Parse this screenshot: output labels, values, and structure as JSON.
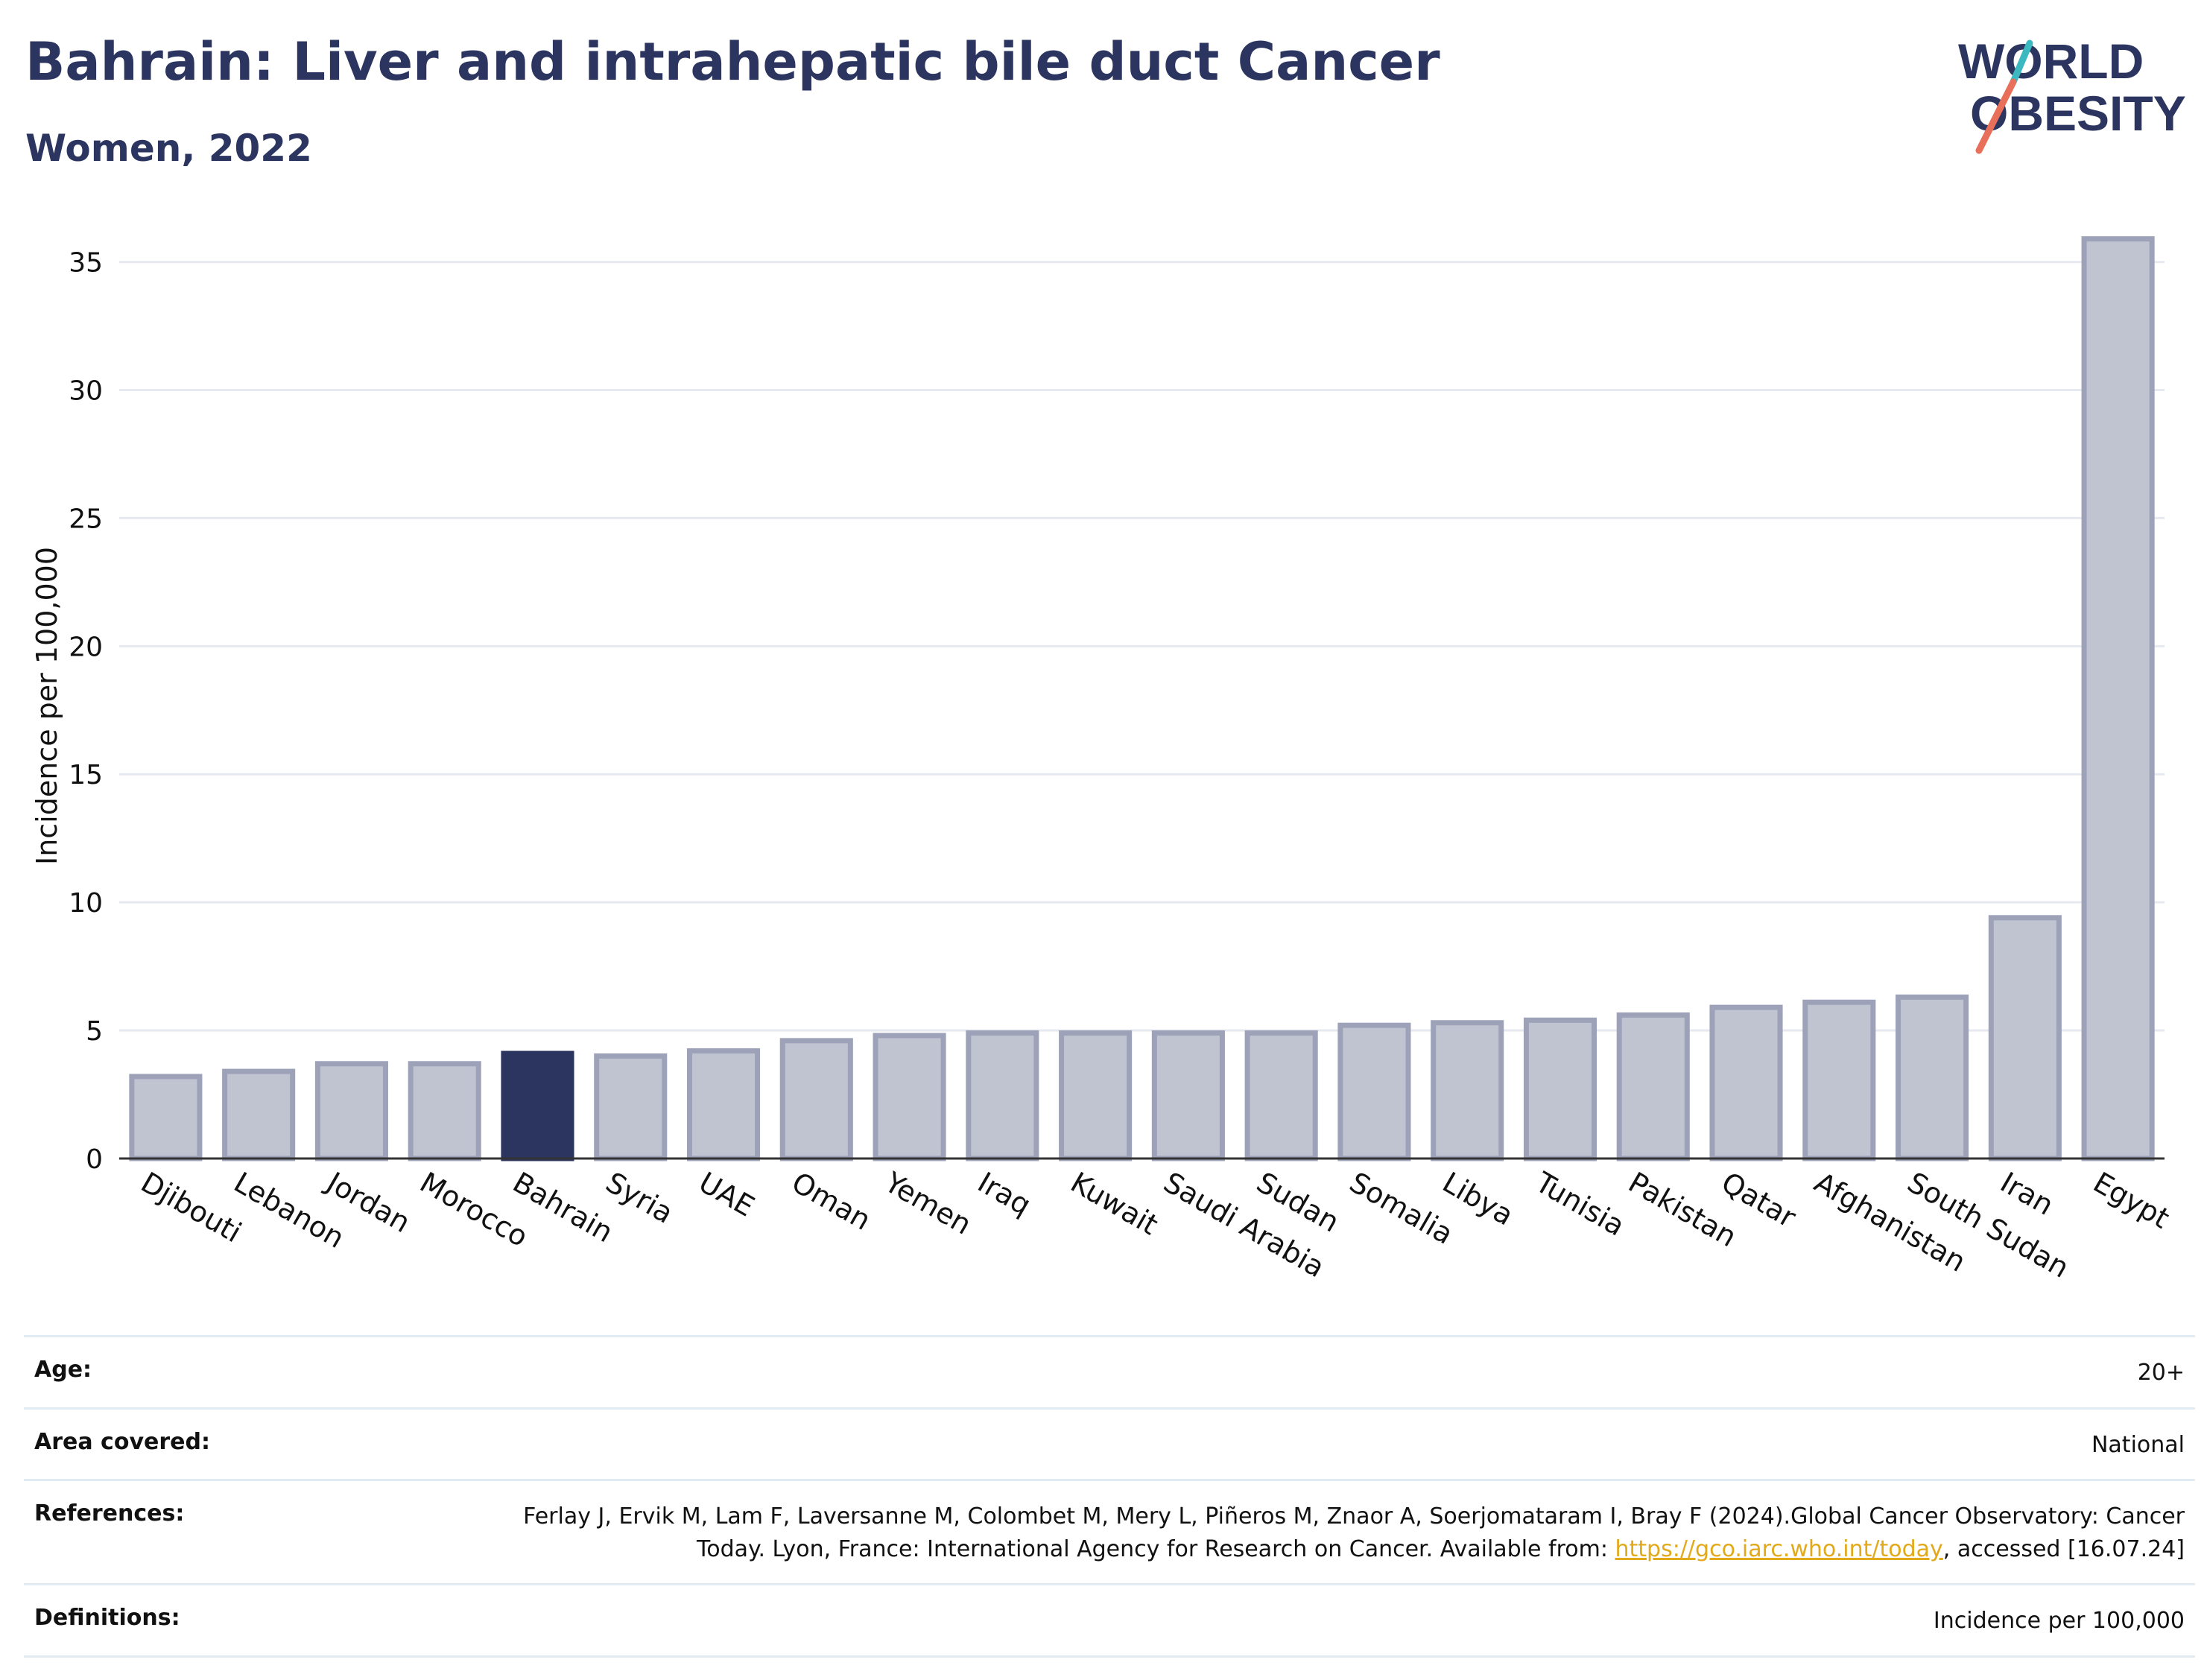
{
  "header": {
    "title": "Bahrain: Liver and intrahepatic bile duct Cancer",
    "subtitle": "Women, 2022"
  },
  "logo": {
    "line1": "WORLD",
    "line2": "OBESITY"
  },
  "colors": {
    "highlight": "#2b3560",
    "bar_fill": "#c0c3d0",
    "bar_stroke": "#9da2b9",
    "grid": "#e6e9ef",
    "link": "#e2a91a"
  },
  "chart_data": {
    "type": "bar",
    "ylabel": "Incidence per 100,000",
    "xlabel": "",
    "ylim": [
      0,
      36.5
    ],
    "yticks": [
      0,
      5,
      10,
      15,
      20,
      25,
      30,
      35
    ],
    "grid": true,
    "highlight": "Bahrain",
    "categories": [
      "Djibouti",
      "Lebanon",
      "Jordan",
      "Morocco",
      "Bahrain",
      "Syria",
      "UAE",
      "Oman",
      "Yemen",
      "Iraq",
      "Kuwait",
      "Saudi Arabia",
      "Sudan",
      "Somalia",
      "Libya",
      "Tunisia",
      "Pakistan",
      "Qatar",
      "Afghanistan",
      "South Sudan",
      "Iran",
      "Egypt"
    ],
    "values": [
      3.2,
      3.4,
      3.7,
      3.7,
      4.1,
      4.0,
      4.2,
      4.6,
      4.8,
      4.9,
      4.9,
      4.9,
      4.9,
      5.2,
      5.3,
      5.4,
      5.6,
      5.9,
      6.1,
      6.3,
      9.4,
      35.9
    ]
  },
  "meta": [
    {
      "label": "Age:",
      "value": "20+"
    },
    {
      "label": "Area covered:",
      "value": "National"
    },
    {
      "label": "References:",
      "value_pre": "Ferlay J, Ervik M, Lam F, Laversanne M, Colombet M, Mery L, Piñeros M, Znaor A, Soerjomataram I, Bray F (2024).Global Cancer Observatory: Cancer Today. Lyon, France: International Agency for Research on Cancer. Available from: ",
      "link": "https://gco.iarc.who.int/today",
      "value_post": ", accessed [16.07.24]"
    },
    {
      "label": "Definitions:",
      "value": "Incidence per 100,000"
    }
  ]
}
